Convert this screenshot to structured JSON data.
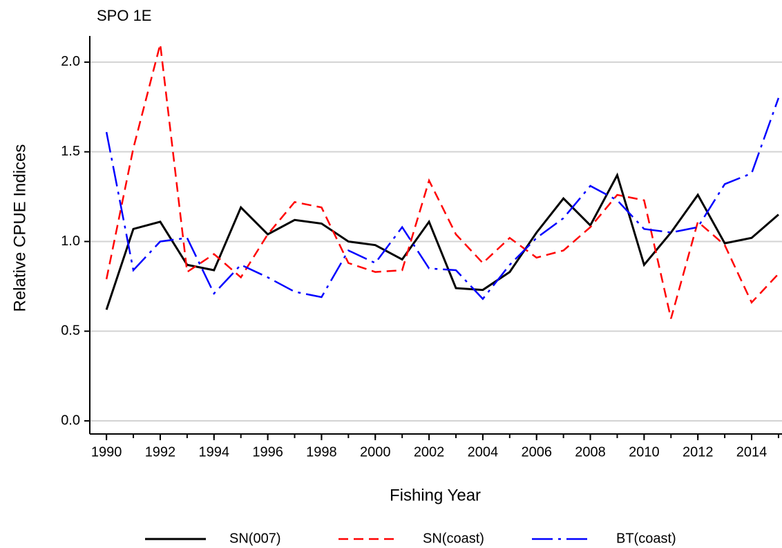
{
  "chart_data": {
    "type": "line",
    "title": "SPO 1E",
    "x_label": "Fishing Year",
    "y_label": "Relative CPUE Indices",
    "x": [
      1990,
      1991,
      1992,
      1993,
      1994,
      1995,
      1996,
      1997,
      1998,
      1999,
      2000,
      2001,
      2002,
      2003,
      2004,
      2005,
      2006,
      2007,
      2008,
      2009,
      2010,
      2011,
      2012,
      2013,
      2014,
      2015
    ],
    "series": [
      {
        "name": "SN(007)",
        "color": "#000000",
        "dash": "solid",
        "values": [
          0.62,
          1.07,
          1.11,
          0.87,
          0.84,
          1.19,
          1.04,
          1.12,
          1.1,
          1.0,
          0.98,
          0.9,
          1.11,
          0.74,
          0.73,
          0.83,
          1.05,
          1.24,
          1.09,
          1.37,
          0.87,
          1.05,
          1.26,
          0.99,
          1.02,
          1.15
        ]
      },
      {
        "name": "SN(coast)",
        "color": "#ff0000",
        "dash": "dashed",
        "values": [
          0.79,
          1.52,
          2.1,
          0.83,
          0.93,
          0.8,
          1.04,
          1.22,
          1.19,
          0.88,
          0.83,
          0.84,
          1.34,
          1.04,
          0.88,
          1.02,
          0.91,
          0.95,
          1.08,
          1.26,
          1.23,
          0.57,
          1.11,
          0.98,
          0.66,
          0.82
        ]
      },
      {
        "name": "BT(coast)",
        "color": "#0000ff",
        "dash": "dashdot",
        "values": [
          1.61,
          0.84,
          1.0,
          1.02,
          0.71,
          0.87,
          0.8,
          0.72,
          0.69,
          0.95,
          0.88,
          1.08,
          0.85,
          0.84,
          0.68,
          0.87,
          1.02,
          1.13,
          1.31,
          1.23,
          1.07,
          1.05,
          1.08,
          1.32,
          1.38,
          1.8
        ]
      }
    ],
    "xlim": [
      1989.38,
      2015.13
    ],
    "xticks": [
      1990,
      1992,
      1994,
      1996,
      1998,
      2000,
      2002,
      2004,
      2006,
      2008,
      2010,
      2012,
      2014
    ],
    "ylim": [
      -0.073,
      2.146
    ],
    "yticks": [
      {
        "value": 0,
        "label": "0.0"
      },
      {
        "value": 0.5,
        "label": "0.5"
      },
      {
        "value": 1,
        "label": "1.0"
      },
      {
        "value": 1.5,
        "label": "1.5"
      },
      {
        "value": 2,
        "label": "2.0"
      }
    ],
    "grid": true,
    "legend": "bottom"
  }
}
